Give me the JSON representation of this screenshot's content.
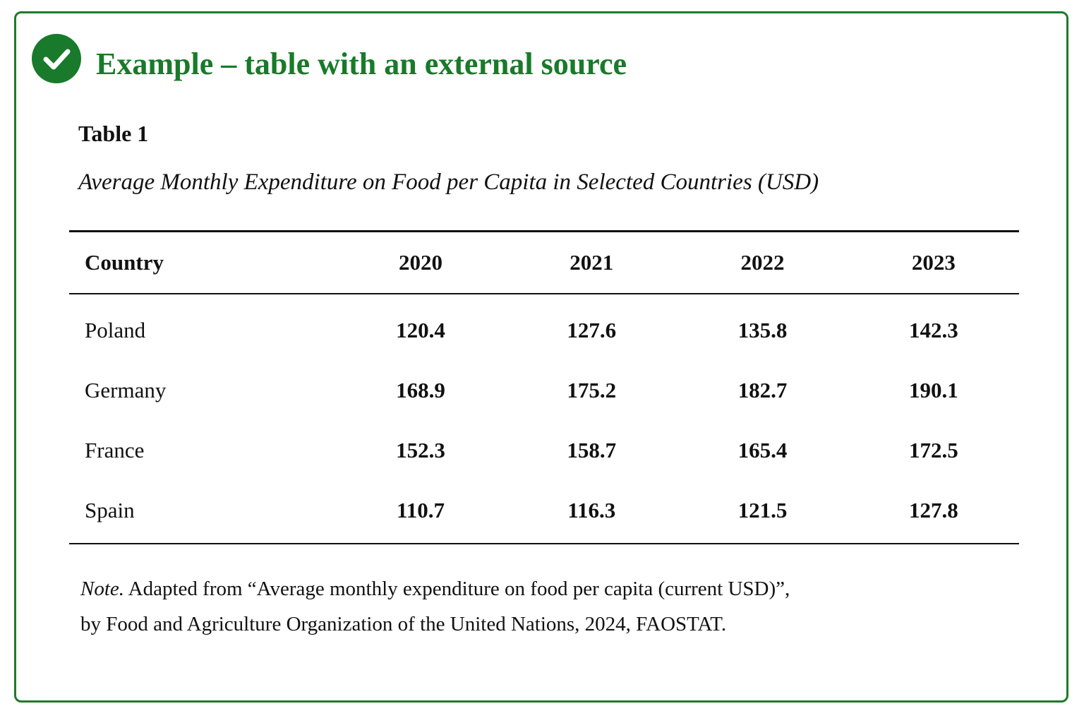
{
  "heading": "Example – table with an external source",
  "icons": {
    "badge": "checkmark-circle-icon"
  },
  "colors": {
    "accent": "#187a2a",
    "border": "#1f7a2b",
    "text": "#111111"
  },
  "table": {
    "label": "Table 1",
    "title": "Average Monthly Expenditure on Food per Capita in Selected Countries (USD)",
    "columns": [
      "Country",
      "2020",
      "2021",
      "2022",
      "2023"
    ],
    "rows": [
      [
        "Poland",
        "120.4",
        "127.6",
        "135.8",
        "142.3"
      ],
      [
        "Germany",
        "168.9",
        "175.2",
        "182.7",
        "190.1"
      ],
      [
        "France",
        "152.3",
        "158.7",
        "165.4",
        "172.5"
      ],
      [
        "Spain",
        "110.7",
        "116.3",
        "121.5",
        "127.8"
      ]
    ]
  },
  "note": {
    "label": "Note.",
    "line1": " Adapted from “Average monthly expenditure on food per capita (current USD)”,",
    "line2": "by Food and Agriculture Organization of the United Nations, 2024, FAOSTAT."
  }
}
